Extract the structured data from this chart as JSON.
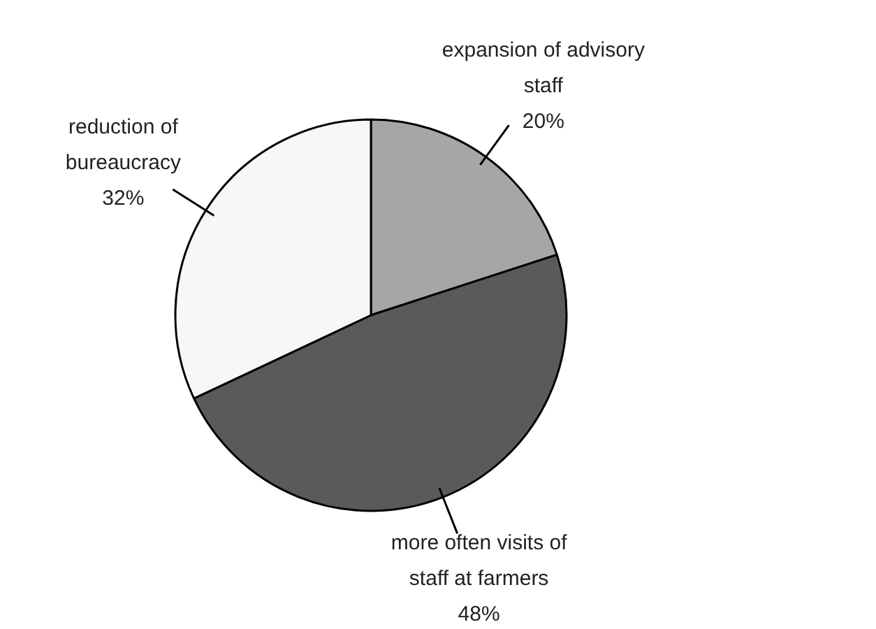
{
  "chart_data": {
    "type": "pie",
    "categories": [
      "expansion of advisory staff",
      "more often visits of staff at farmers",
      "reduction of bureaucracy"
    ],
    "values": [
      20,
      48,
      32
    ],
    "value_labels": [
      "20%",
      "48%",
      "32%"
    ],
    "colors": [
      "#a6a6a6",
      "#5a5a5a",
      "#f7f7f7"
    ]
  }
}
